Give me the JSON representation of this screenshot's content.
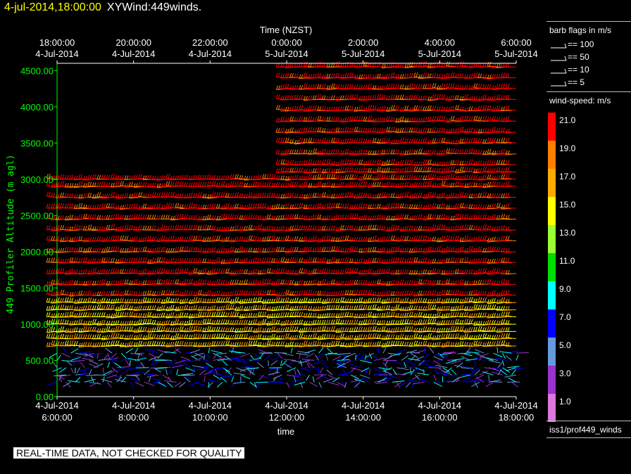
{
  "title": {
    "timestamp": "4-jul-2014,18:00:00",
    "text": "XYWind:449winds."
  },
  "qc_note": "REAL-TIME DATA, NOT CHECKED FOR QUALITY",
  "legend": {
    "barb_title": "barb flags in m/s",
    "barbs": [
      {
        "label": "== 100"
      },
      {
        "label": "== 50"
      },
      {
        "label": "== 10"
      },
      {
        "label": "== 5"
      }
    ],
    "speed_title": "wind-speed: m/s",
    "speed_bins": [
      {
        "label": "21.0",
        "color": "#ff0000"
      },
      {
        "label": "19.0",
        "color": "#ff7f00"
      },
      {
        "label": "17.0",
        "color": "#ffaa00"
      },
      {
        "label": "15.0",
        "color": "#ffff00"
      },
      {
        "label": "13.0",
        "color": "#99ff33"
      },
      {
        "label": "11.0",
        "color": "#00dd00"
      },
      {
        "label": "9.0",
        "color": "#00ffff"
      },
      {
        "label": "7.0",
        "color": "#0000ff"
      },
      {
        "label": "5.0",
        "color": "#6699dd"
      },
      {
        "label": "3.0",
        "color": "#9933cc"
      },
      {
        "label": "1.0",
        "color": "#dd77dd"
      }
    ],
    "footer": "iss1/prof449_winds"
  },
  "chart_data": {
    "type": "scatter",
    "subtype": "wind-barbs",
    "xlabel": "time",
    "top_axis_label": "Time (NZST)",
    "ylabel": "449 Profiler Altitude (m agl)",
    "ylim": [
      0,
      4600
    ],
    "xlim": [
      6,
      18
    ],
    "x_unit": "hours UTC, 4-Jul-2014",
    "bottom_ticks": [
      {
        "x": 6,
        "date": "4-Jul-2014",
        "time": "6:00:00"
      },
      {
        "x": 8,
        "date": "4-Jul-2014",
        "time": "8:00:00"
      },
      {
        "x": 10,
        "date": "4-Jul-2014",
        "time": "10:00:00"
      },
      {
        "x": 12,
        "date": "4-Jul-2014",
        "time": "12:00:00"
      },
      {
        "x": 14,
        "date": "4-Jul-2014",
        "time": "14:00:00"
      },
      {
        "x": 16,
        "date": "4-Jul-2014",
        "time": "16:00:00"
      },
      {
        "x": 18,
        "date": "4-Jul-2014",
        "time": "18:00:00"
      }
    ],
    "top_ticks": [
      {
        "x": 6,
        "time": "18:00:00",
        "date": "4-Jul-2014"
      },
      {
        "x": 8,
        "time": "20:00:00",
        "date": "4-Jul-2014"
      },
      {
        "x": 10,
        "time": "22:00:00",
        "date": "4-Jul-2014"
      },
      {
        "x": 12,
        "time": "0:00:00",
        "date": "5-Jul-2014"
      },
      {
        "x": 14,
        "time": "2:00:00",
        "date": "5-Jul-2014"
      },
      {
        "x": 16,
        "time": "4:00:00",
        "date": "5-Jul-2014"
      },
      {
        "x": 18,
        "time": "6:00:00",
        "date": "5-Jul-2014"
      }
    ],
    "y_ticks": [
      "0.00",
      "500.00",
      "1000.00",
      "1500.00",
      "2000.00",
      "2500.00",
      "3000.00",
      "3500.00",
      "4000.00",
      "4500.00"
    ],
    "y_tick_values": [
      0,
      500,
      1000,
      1500,
      2000,
      2500,
      3000,
      3500,
      4000,
      4500
    ],
    "series": [
      {
        "levels": [
          3000,
          2900,
          2750,
          2600,
          2450,
          2300,
          2150,
          2000,
          1850,
          1700,
          1550,
          1400
        ],
        "speed": 21,
        "direction": "westerly"
      },
      {
        "levels": [
          1300,
          1200,
          1100,
          1000,
          900,
          800,
          700
        ],
        "speed": 16,
        "direction": "westerly"
      },
      {
        "levels": [
          3100,
          3200,
          3350,
          3500,
          3650,
          3800,
          3950,
          4100,
          4250,
          4400,
          4550
        ],
        "speed": 21,
        "direction": "westerly",
        "x_start": 12
      },
      {
        "levels": [
          600,
          500,
          400,
          300,
          200
        ],
        "speed": 6,
        "direction": "variable"
      }
    ]
  }
}
